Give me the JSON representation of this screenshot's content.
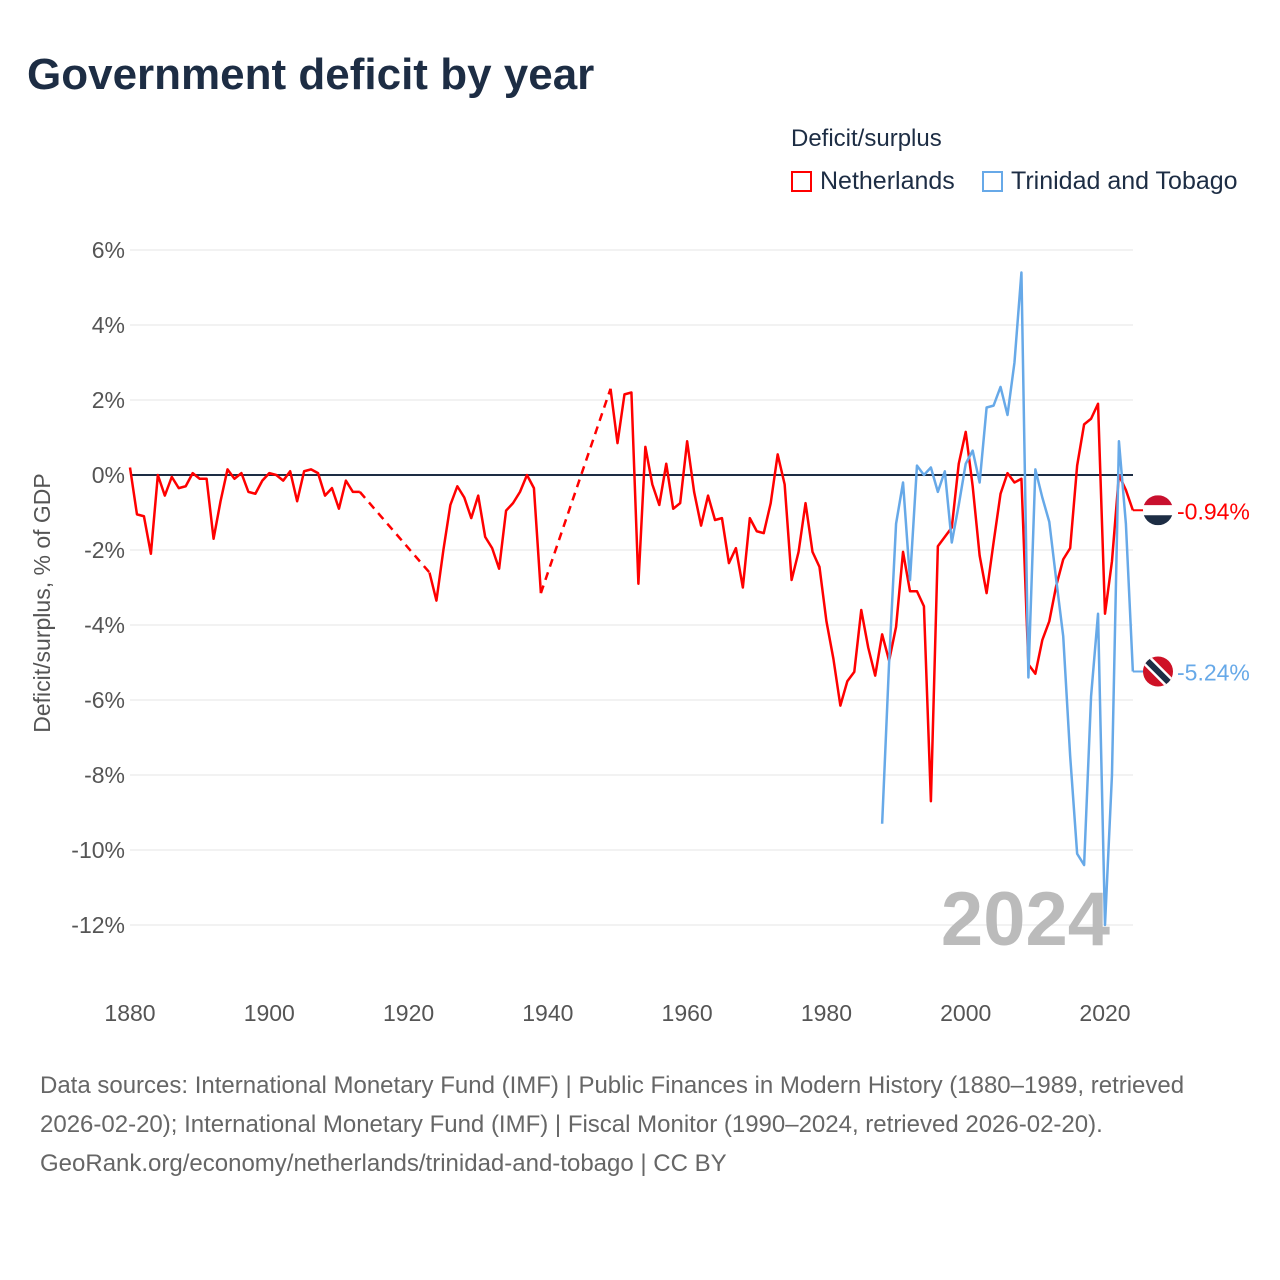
{
  "title": "Government deficit by year",
  "legend": {
    "title": "Deficit/surplus",
    "items": [
      {
        "label": "Netherlands",
        "color": "#ff0000"
      },
      {
        "label": "Trinidad and Tobago",
        "color": "#67a9e8"
      }
    ]
  },
  "footer": {
    "sources": "Data sources: International Monetary Fund (IMF) | Public Finances in Modern History (1880–1989, retrieved 2026-02-20); International Monetary Fund (IMF) | Fiscal Monitor (1990–2024, retrieved 2026-02-20).",
    "credit": "GeoRank.org/economy/netherlands/trinidad-and-tobago | CC BY"
  },
  "chart_data": {
    "type": "line",
    "ylabel": "Deficit/surplus, % of GDP",
    "xlim": [
      1880,
      2024
    ],
    "ylim": [
      -12,
      6
    ],
    "x_ticks": [
      "1880",
      "1900",
      "1920",
      "1940",
      "1960",
      "1980",
      "2000",
      "2020"
    ],
    "y_ticks": [
      "6%",
      "4%",
      "2%",
      "0%",
      "-2%",
      "-4%",
      "-6%",
      "-8%",
      "-10%",
      "-12%"
    ],
    "year_label": "2024",
    "series": [
      {
        "name": "Netherlands",
        "color": "#ff0000",
        "end_label": "-0.94%",
        "start": 1880,
        "values": [
          0.2,
          -1.05,
          -1.1,
          -2.1,
          0,
          -0.55,
          -0.05,
          -0.35,
          -0.3,
          0.05,
          -0.1,
          -0.1,
          -1.7,
          -0.7,
          0.15,
          -0.1,
          0.05,
          -0.45,
          -0.5,
          -0.15,
          0.05,
          0,
          -0.15,
          0.1,
          -0.7,
          0.1,
          0.15,
          0.05,
          -0.55,
          -0.35,
          -0.9,
          -0.15,
          -0.45,
          -0.45,
          null,
          null,
          null,
          null,
          null,
          null,
          null,
          null,
          null,
          -2.6,
          -3.35,
          -2.0,
          -0.8,
          -0.3,
          -0.6,
          -1.15,
          -0.55,
          -1.65,
          -1.95,
          -2.5,
          -0.95,
          -0.75,
          -0.45,
          0,
          -0.35,
          -3.15,
          null,
          null,
          null,
          null,
          null,
          null,
          null,
          null,
          null,
          2.3,
          0.85,
          2.15,
          2.2,
          -2.9,
          0.75,
          -0.25,
          -0.8,
          0.3,
          -0.9,
          -0.75,
          0.9,
          -0.45,
          -1.35,
          -0.55,
          -1.2,
          -1.15,
          -2.35,
          -1.95,
          -3.0,
          -1.15,
          -1.5,
          -1.55,
          -0.75,
          0.55,
          -0.25,
          -2.8,
          -2.05,
          -0.75,
          -2.05,
          -2.45,
          -3.9,
          -4.9,
          -6.15,
          -5.5,
          -5.25,
          -3.6,
          -4.6,
          -5.35,
          -4.25,
          -4.95,
          -4.05,
          -2.05,
          -3.1,
          -3.1,
          -3.5,
          -8.7,
          -1.9,
          -1.65,
          -1.4,
          0.3,
          1.15,
          -0.3,
          -2.15,
          -3.15,
          -1.8,
          -0.5,
          0.05,
          -0.2,
          -0.1,
          -5.05,
          -5.3,
          -4.4,
          -3.9,
          -2.95,
          -2.25,
          -1.95,
          0.25,
          1.35,
          1.5,
          1.9,
          -3.7,
          -2.3,
          0,
          -0.4,
          -0.94
        ]
      },
      {
        "name": "Trinidad and Tobago",
        "color": "#67a9e8",
        "end_label": "-5.24%",
        "start": 1988,
        "values": [
          -9.3,
          -5.0,
          -1.3,
          -0.2,
          -2.8,
          0.25,
          0,
          0.2,
          -0.45,
          0.1,
          -1.8,
          -0.8,
          0.3,
          0.65,
          -0.2,
          1.8,
          1.85,
          2.35,
          1.6,
          3.0,
          5.4,
          -5.4,
          0.15,
          -0.6,
          -1.25,
          -2.8,
          -4.3,
          -7.5,
          -10.1,
          -10.4,
          -5.9,
          -3.7,
          -12.0,
          -8.0,
          0.9,
          -1.3,
          -5.24
        ]
      }
    ]
  }
}
